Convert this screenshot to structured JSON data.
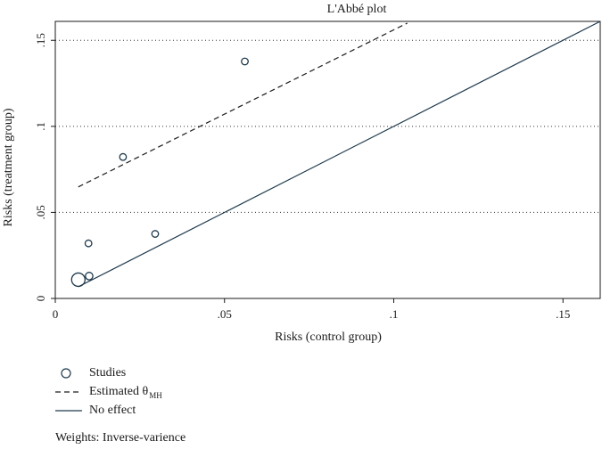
{
  "chart_data": {
    "type": "scatter",
    "title": "L'Abbé plot",
    "xlabel": "Risks (control group)",
    "ylabel": "Risks (treatment group)",
    "xlim": [
      0,
      0.161
    ],
    "ylim": [
      0,
      0.161
    ],
    "x_ticks": [
      {
        "value": 0,
        "label": "0"
      },
      {
        "value": 0.05,
        "label": ".05"
      },
      {
        "value": 0.1,
        "label": ".1"
      },
      {
        "value": 0.15,
        "label": ".15"
      }
    ],
    "y_ticks": [
      {
        "value": 0,
        "label": "0"
      },
      {
        "value": 0.05,
        "label": ".05"
      },
      {
        "value": 0.1,
        "label": ".1"
      },
      {
        "value": 0.15,
        "label": ".15"
      }
    ],
    "grid": "horizontal dotted",
    "series": [
      {
        "name": "Studies",
        "kind": "points",
        "marker": "hollow-circle",
        "points": [
          {
            "x": 0.0068,
            "y": 0.0109,
            "weight": 3.2
          },
          {
            "x": 0.01,
            "y": 0.013,
            "weight": 1.0
          },
          {
            "x": 0.0098,
            "y": 0.032,
            "weight": 0.8
          },
          {
            "x": 0.02,
            "y": 0.0822,
            "weight": 0.8
          },
          {
            "x": 0.0295,
            "y": 0.0375,
            "weight": 0.8
          },
          {
            "x": 0.056,
            "y": 0.1377,
            "weight": 0.8
          }
        ]
      },
      {
        "name": "Estimated θ",
        "subscript": "MH",
        "kind": "line",
        "style": "dashed",
        "points": [
          {
            "x": 0.0068,
            "y": 0.0648
          },
          {
            "x": 0.104,
            "y": 0.16
          }
        ]
      },
      {
        "name": "No effect",
        "kind": "line",
        "style": "solid",
        "points": [
          {
            "x": 0.0068,
            "y": 0.0068
          },
          {
            "x": 0.161,
            "y": 0.161
          }
        ]
      }
    ],
    "legend": {
      "position": "bottom-left",
      "items": [
        "Studies",
        "Estimated θ",
        "No effect"
      ]
    },
    "note": "Weights: Inverse-varience"
  }
}
